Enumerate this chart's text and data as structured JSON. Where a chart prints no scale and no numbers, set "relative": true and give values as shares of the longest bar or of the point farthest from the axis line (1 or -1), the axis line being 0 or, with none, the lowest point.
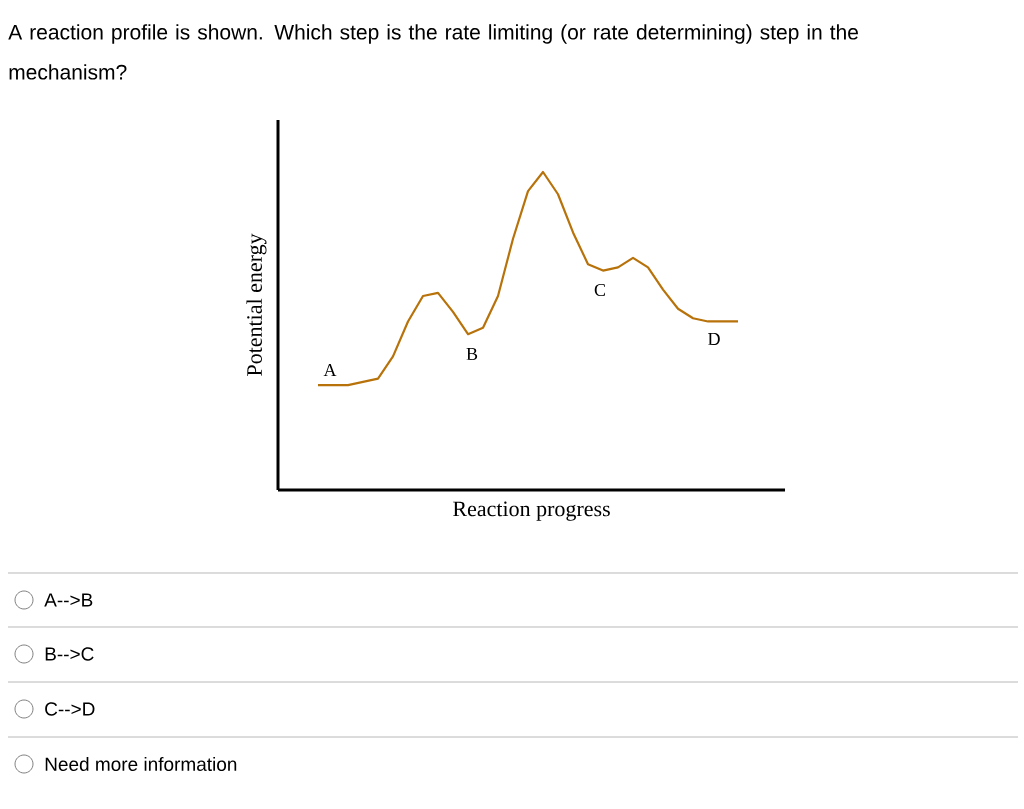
{
  "chart_data": {
    "type": "line",
    "title": "A reaction profile is shown. Which step is the rate limiting (or rate determining) step in the mechanism?",
    "xlabel": "Reaction progress",
    "ylabel": "Potential energy",
    "relative": true,
    "color": "#b8720a",
    "categories": [
      null,
      null,
      null,
      null,
      null,
      null,
      null,
      null,
      null,
      null,
      null,
      null,
      null,
      null,
      null,
      null,
      null,
      null,
      null,
      null,
      null,
      null,
      null,
      null,
      null,
      null,
      null,
      null,
      null
    ],
    "values": [
      0.33,
      0.33,
      0.33,
      0.34,
      0.35,
      0.42,
      0.53,
      0.61,
      0.62,
      0.56,
      0.49,
      0.51,
      0.61,
      0.79,
      0.94,
      1,
      0.93,
      0.81,
      0.71,
      0.69,
      0.7,
      0.73,
      0.7,
      0.63,
      0.57,
      0.54,
      0.53,
      0.53,
      0.53
    ],
    "annotations": [
      "A",
      "B",
      "C",
      "D",
      "A-->B",
      "B-->C",
      "C-->D",
      "Need more information"
    ]
  }
}
